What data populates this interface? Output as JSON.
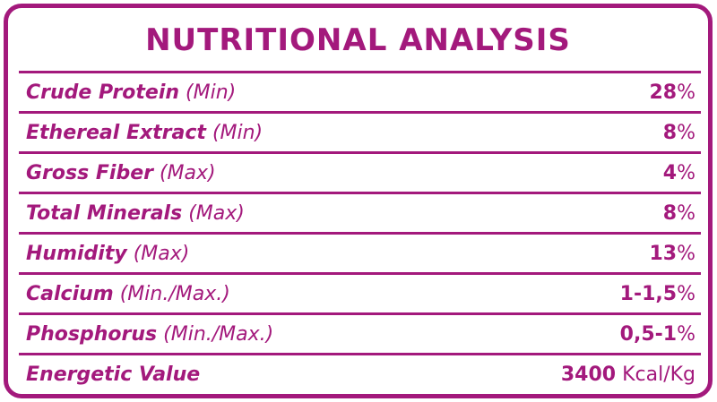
{
  "title": "NUTRITIONAL ANALYSIS",
  "rows": [
    {
      "name": "Crude Protein",
      "qualifier": "(Min)",
      "value": "28",
      "unit": "%"
    },
    {
      "name": "Ethereal Extract",
      "qualifier": "(Min)",
      "value": "8",
      "unit": "%"
    },
    {
      "name": "Gross Fiber",
      "qualifier": "(Max)",
      "value": "4",
      "unit": "%"
    },
    {
      "name": "Total Minerals",
      "qualifier": "(Max)",
      "value": "8",
      "unit": "%"
    },
    {
      "name": "Humidity",
      "qualifier": "(Max)",
      "value": "13",
      "unit": "%"
    },
    {
      "name": "Calcium",
      "qualifier": "(Min./Max.)",
      "value": "1-1,5",
      "unit": "%"
    },
    {
      "name": "Phosphorus",
      "qualifier": "(Min./Max.)",
      "value": "0,5-1",
      "unit": "%"
    },
    {
      "name": "Energetic Value",
      "qualifier": "",
      "value": "3400",
      "unit": " Kcal/Kg"
    }
  ],
  "colors": {
    "accent": "#a3197c",
    "background": "#ffffff"
  }
}
